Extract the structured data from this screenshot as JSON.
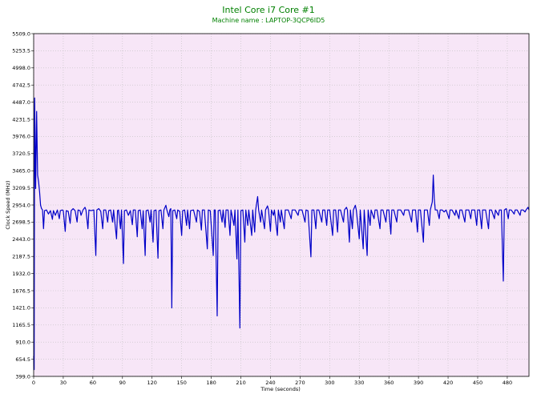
{
  "chart_data": {
    "type": "line",
    "title": "Intel Core i7 Core #1",
    "subtitle": "Machine name : LAPTOP-3QCP6ID5",
    "xlabel": "Time (seconds)",
    "ylabel": "Clock Speed (MHz)",
    "xlim": [
      0,
      502
    ],
    "ylim": [
      399.0,
      5509.0
    ],
    "x_ticks": [
      0,
      30,
      60,
      90,
      120,
      150,
      180,
      210,
      240,
      270,
      300,
      330,
      360,
      390,
      420,
      450,
      480
    ],
    "y_ticks": [
      399.0,
      654.5,
      910.0,
      1165.5,
      1421.0,
      1676.5,
      1932.0,
      2187.5,
      2443.0,
      2698.5,
      2954.0,
      3209.5,
      3465.0,
      3720.5,
      3976.0,
      4231.5,
      4487.0,
      4742.5,
      4998.0,
      5253.5,
      5509.0
    ],
    "grid": true,
    "colors": {
      "background": "#f7e6f7",
      "grid": "#c0c0c0",
      "line": "#0000c8",
      "title": "#008000"
    },
    "series": [
      {
        "values": [
          [
            0,
            700
          ],
          [
            0.5,
            500
          ],
          [
            1,
            4550
          ],
          [
            2,
            3200
          ],
          [
            3,
            4350
          ],
          [
            4,
            3400
          ],
          [
            5,
            3300
          ],
          [
            6,
            3150
          ],
          [
            7,
            2950
          ],
          [
            8,
            2900
          ],
          [
            9,
            2880
          ],
          [
            10,
            2600
          ],
          [
            11,
            2870
          ],
          [
            13,
            2880
          ],
          [
            15,
            2820
          ],
          [
            17,
            2870
          ],
          [
            19,
            2740
          ],
          [
            20,
            2870
          ],
          [
            22,
            2800
          ],
          [
            24,
            2880
          ],
          [
            26,
            2750
          ],
          [
            27,
            2870
          ],
          [
            29,
            2880
          ],
          [
            30,
            2870
          ],
          [
            32,
            2560
          ],
          [
            33,
            2870
          ],
          [
            35,
            2860
          ],
          [
            37,
            2680
          ],
          [
            38,
            2870
          ],
          [
            40,
            2900
          ],
          [
            42,
            2870
          ],
          [
            44,
            2700
          ],
          [
            45,
            2880
          ],
          [
            47,
            2870
          ],
          [
            48,
            2800
          ],
          [
            50,
            2880
          ],
          [
            52,
            2920
          ],
          [
            53,
            2880
          ],
          [
            55,
            2600
          ],
          [
            56,
            2880
          ],
          [
            58,
            2870
          ],
          [
            61,
            2880
          ],
          [
            63,
            2200
          ],
          [
            64,
            2880
          ],
          [
            66,
            2900
          ],
          [
            68,
            2860
          ],
          [
            70,
            2600
          ],
          [
            71,
            2880
          ],
          [
            73,
            2880
          ],
          [
            75,
            2700
          ],
          [
            76,
            2870
          ],
          [
            78,
            2880
          ],
          [
            80,
            2700
          ],
          [
            81,
            2880
          ],
          [
            84,
            2450
          ],
          [
            85,
            2870
          ],
          [
            86,
            2880
          ],
          [
            88,
            2600
          ],
          [
            89,
            2880
          ],
          [
            91,
            2080
          ],
          [
            92,
            2870
          ],
          [
            94,
            2880
          ],
          [
            96,
            2800
          ],
          [
            98,
            2870
          ],
          [
            100,
            2660
          ],
          [
            101,
            2880
          ],
          [
            103,
            2880
          ],
          [
            105,
            2480
          ],
          [
            106,
            2870
          ],
          [
            108,
            2880
          ],
          [
            110,
            2600
          ],
          [
            111,
            2870
          ],
          [
            113,
            2200
          ],
          [
            114,
            2870
          ],
          [
            116,
            2880
          ],
          [
            118,
            2700
          ],
          [
            119,
            2880
          ],
          [
            121,
            2400
          ],
          [
            122,
            2870
          ],
          [
            124,
            2880
          ],
          [
            126,
            2160
          ],
          [
            127,
            2870
          ],
          [
            129,
            2880
          ],
          [
            131,
            2600
          ],
          [
            132,
            2880
          ],
          [
            134,
            2950
          ],
          [
            135,
            2880
          ],
          [
            137,
            2780
          ],
          [
            138,
            2880
          ],
          [
            139,
            2900
          ],
          [
            140,
            1420
          ],
          [
            141,
            2870
          ],
          [
            143,
            2880
          ],
          [
            145,
            2750
          ],
          [
            146,
            2880
          ],
          [
            148,
            2860
          ],
          [
            150,
            2500
          ],
          [
            151,
            2870
          ],
          [
            153,
            2880
          ],
          [
            155,
            2650
          ],
          [
            156,
            2880
          ],
          [
            158,
            2600
          ],
          [
            159,
            2870
          ],
          [
            162,
            2880
          ],
          [
            165,
            2700
          ],
          [
            166,
            2880
          ],
          [
            168,
            2860
          ],
          [
            170,
            2580
          ],
          [
            171,
            2880
          ],
          [
            173,
            2880
          ],
          [
            176,
            2300
          ],
          [
            177,
            2880
          ],
          [
            179,
            2870
          ],
          [
            182,
            2200
          ],
          [
            183,
            2880
          ],
          [
            184,
            2880
          ],
          [
            186,
            1300
          ],
          [
            187,
            2870
          ],
          [
            189,
            2880
          ],
          [
            191,
            2700
          ],
          [
            192,
            2880
          ],
          [
            194,
            2620
          ],
          [
            195,
            2880
          ],
          [
            197,
            2880
          ],
          [
            199,
            2500
          ],
          [
            200,
            2880
          ],
          [
            203,
            2650
          ],
          [
            204,
            2880
          ],
          [
            206,
            2150
          ],
          [
            207,
            2880
          ],
          [
            209,
            1120
          ],
          [
            210,
            2870
          ],
          [
            212,
            2880
          ],
          [
            214,
            2400
          ],
          [
            215,
            2880
          ],
          [
            217,
            2650
          ],
          [
            218,
            2880
          ],
          [
            221,
            2500
          ],
          [
            222,
            2880
          ],
          [
            224,
            2550
          ],
          [
            225,
            2880
          ],
          [
            227,
            3080
          ],
          [
            228,
            2880
          ],
          [
            230,
            2700
          ],
          [
            231,
            2880
          ],
          [
            234,
            2600
          ],
          [
            235,
            2880
          ],
          [
            237,
            2940
          ],
          [
            238,
            2880
          ],
          [
            240,
            2560
          ],
          [
            241,
            2880
          ],
          [
            243,
            2800
          ],
          [
            244,
            2880
          ],
          [
            247,
            2500
          ],
          [
            248,
            2880
          ],
          [
            250,
            2700
          ],
          [
            251,
            2880
          ],
          [
            254,
            2600
          ],
          [
            255,
            2880
          ],
          [
            258,
            2880
          ],
          [
            261,
            2750
          ],
          [
            262,
            2880
          ],
          [
            265,
            2880
          ],
          [
            268,
            2800
          ],
          [
            269,
            2880
          ],
          [
            272,
            2880
          ],
          [
            275,
            2700
          ],
          [
            276,
            2880
          ],
          [
            278,
            2870
          ],
          [
            281,
            2180
          ],
          [
            282,
            2880
          ],
          [
            284,
            2880
          ],
          [
            286,
            2600
          ],
          [
            287,
            2880
          ],
          [
            289,
            2880
          ],
          [
            292,
            2700
          ],
          [
            293,
            2880
          ],
          [
            295,
            2880
          ],
          [
            297,
            2650
          ],
          [
            298,
            2880
          ],
          [
            300,
            2880
          ],
          [
            303,
            2500
          ],
          [
            304,
            2880
          ],
          [
            306,
            2880
          ],
          [
            308,
            2550
          ],
          [
            309,
            2880
          ],
          [
            311,
            2880
          ],
          [
            314,
            2700
          ],
          [
            315,
            2880
          ],
          [
            317,
            2920
          ],
          [
            318,
            2880
          ],
          [
            320,
            2400
          ],
          [
            321,
            2880
          ],
          [
            323,
            2600
          ],
          [
            324,
            2880
          ],
          [
            326,
            2950
          ],
          [
            327,
            2880
          ],
          [
            330,
            2450
          ],
          [
            331,
            2880
          ],
          [
            334,
            2300
          ],
          [
            335,
            2880
          ],
          [
            338,
            2200
          ],
          [
            339,
            2880
          ],
          [
            341,
            2650
          ],
          [
            342,
            2880
          ],
          [
            345,
            2750
          ],
          [
            346,
            2880
          ],
          [
            348,
            2880
          ],
          [
            351,
            2600
          ],
          [
            352,
            2880
          ],
          [
            354,
            2880
          ],
          [
            357,
            2700
          ],
          [
            358,
            2880
          ],
          [
            360,
            2880
          ],
          [
            362,
            2520
          ],
          [
            363,
            2880
          ],
          [
            365,
            2880
          ],
          [
            368,
            2700
          ],
          [
            369,
            2880
          ],
          [
            372,
            2880
          ],
          [
            375,
            2800
          ],
          [
            376,
            2880
          ],
          [
            380,
            2880
          ],
          [
            383,
            2700
          ],
          [
            384,
            2880
          ],
          [
            387,
            2880
          ],
          [
            389,
            2550
          ],
          [
            390,
            2880
          ],
          [
            392,
            2880
          ],
          [
            395,
            2400
          ],
          [
            396,
            2880
          ],
          [
            399,
            2880
          ],
          [
            401,
            2650
          ],
          [
            402,
            2880
          ],
          [
            404,
            3000
          ],
          [
            405,
            3400
          ],
          [
            406,
            3050
          ],
          [
            407,
            2880
          ],
          [
            409,
            2880
          ],
          [
            411,
            2750
          ],
          [
            412,
            2880
          ],
          [
            414,
            2880
          ],
          [
            416,
            2850
          ],
          [
            418,
            2880
          ],
          [
            421,
            2750
          ],
          [
            422,
            2880
          ],
          [
            424,
            2880
          ],
          [
            427,
            2800
          ],
          [
            428,
            2880
          ],
          [
            431,
            2750
          ],
          [
            432,
            2880
          ],
          [
            434,
            2880
          ],
          [
            437,
            2700
          ],
          [
            438,
            2880
          ],
          [
            441,
            2880
          ],
          [
            443,
            2750
          ],
          [
            444,
            2880
          ],
          [
            447,
            2880
          ],
          [
            449,
            2650
          ],
          [
            450,
            2880
          ],
          [
            452,
            2880
          ],
          [
            454,
            2600
          ],
          [
            455,
            2880
          ],
          [
            458,
            2880
          ],
          [
            461,
            2600
          ],
          [
            462,
            2880
          ],
          [
            464,
            2880
          ],
          [
            467,
            2750
          ],
          [
            468,
            2880
          ],
          [
            471,
            2800
          ],
          [
            472,
            2880
          ],
          [
            474,
            2880
          ],
          [
            476,
            1820
          ],
          [
            477,
            2880
          ],
          [
            479,
            2900
          ],
          [
            481,
            2750
          ],
          [
            482,
            2880
          ],
          [
            484,
            2880
          ],
          [
            487,
            2820
          ],
          [
            488,
            2880
          ],
          [
            490,
            2880
          ],
          [
            493,
            2800
          ],
          [
            494,
            2880
          ],
          [
            496,
            2880
          ],
          [
            498,
            2850
          ],
          [
            499,
            2880
          ],
          [
            501,
            2920
          ],
          [
            502,
            2880
          ]
        ]
      }
    ]
  }
}
